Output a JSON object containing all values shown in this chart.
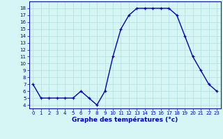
{
  "hours": [
    0,
    1,
    2,
    3,
    4,
    5,
    6,
    7,
    8,
    9,
    10,
    11,
    12,
    13,
    14,
    15,
    16,
    17,
    18,
    19,
    20,
    21,
    22,
    23
  ],
  "temps": [
    7,
    5,
    5,
    5,
    5,
    5,
    6,
    5,
    4,
    6,
    11,
    15,
    17,
    18,
    18,
    18,
    18,
    18,
    17,
    14,
    11,
    9,
    7,
    6
  ],
  "yticks": [
    4,
    5,
    6,
    7,
    8,
    9,
    10,
    11,
    12,
    13,
    14,
    15,
    16,
    17,
    18
  ],
  "ylim": [
    3.5,
    19.0
  ],
  "xlim": [
    -0.5,
    23.5
  ],
  "xlabel": "Graphe des températures (°c)",
  "line_color": "#0000bb",
  "marker": "+",
  "marker_size": 3.5,
  "marker_lw": 0.9,
  "line_width": 1.0,
  "background_color": "#d6f5f5",
  "grid_color": "#b0dede",
  "tick_color": "#0000bb",
  "spine_color": "#0000bb",
  "xlabel_color": "#0000bb",
  "tick_fontsize": 5.0,
  "xlabel_fontsize": 6.5
}
